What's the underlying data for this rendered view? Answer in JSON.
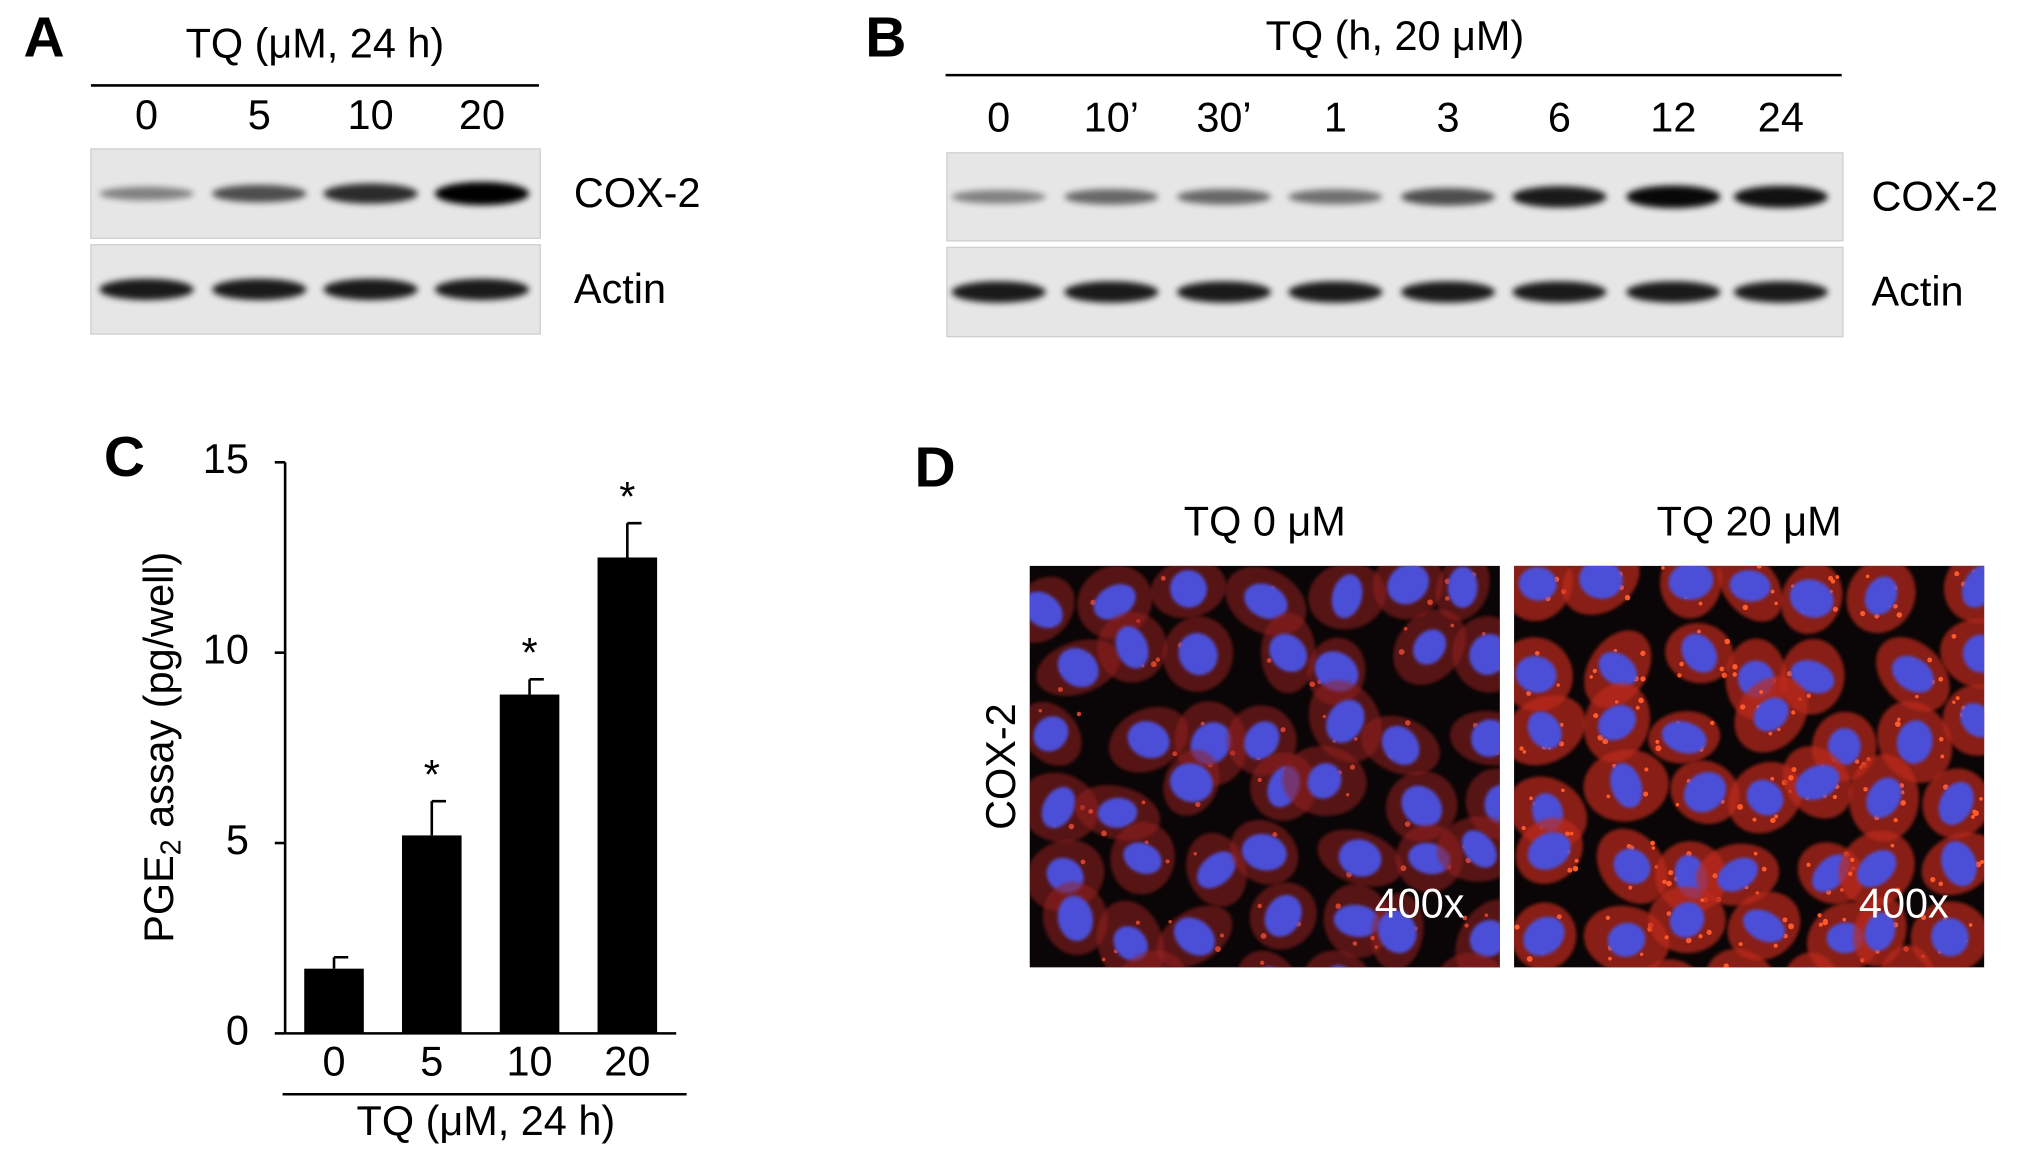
{
  "panel_a": {
    "label": "A",
    "header": "TQ  (μM, 24 h)",
    "lanes": [
      "0",
      "5",
      "10",
      "20"
    ],
    "rows": [
      "COX-2",
      "Actin"
    ]
  },
  "panel_b": {
    "label": "B",
    "header": "TQ (h, 20 μM)",
    "lanes": [
      "0",
      "10’",
      "30’",
      "1",
      "3",
      "6",
      "12",
      "24"
    ],
    "rows": [
      "COX-2",
      "Actin"
    ]
  },
  "panel_c": {
    "label": "C",
    "chart_data": {
      "type": "bar",
      "y_label_parts": [
        "PGE",
        "2",
        " assay (pg/well)"
      ],
      "x_label": "TQ  (μM, 24 h)",
      "categories": [
        "0",
        "5",
        "10",
        "20"
      ],
      "values": [
        1.7,
        5.2,
        8.9,
        12.5
      ],
      "errors": [
        0.3,
        0.9,
        0.4,
        0.9
      ],
      "significance": [
        null,
        "*",
        "*",
        "*"
      ],
      "color": "#000000",
      "ylim": [
        0,
        15
      ],
      "yticks": [
        0,
        5,
        10,
        15
      ]
    }
  },
  "panel_d": {
    "label": "D",
    "row_label": "COX-2",
    "images": [
      {
        "title": "TQ 0 μM",
        "magnification": "400x"
      },
      {
        "title": "TQ 20 μM",
        "magnification": "400x"
      }
    ]
  }
}
